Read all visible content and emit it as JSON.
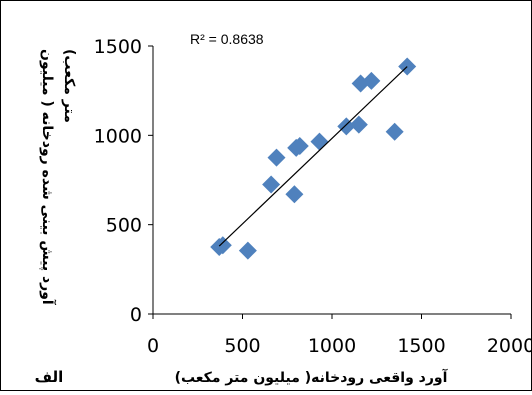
{
  "chart_data": {
    "type": "scatter",
    "xlabel": "آورد واقعی رودخانه( میلیون متر مکعب)",
    "ylabel": "آورد پیش بینی شده رودخانه ( میلیون متر مکعب)",
    "ylabel_lines": [
      "آورد پیش بینی شده رودخانه ( میلیون",
      "متر مکعب)"
    ],
    "xlim": [
      0,
      2000
    ],
    "ylim": [
      0,
      1500
    ],
    "xticks": [
      "0",
      "500",
      "1000",
      "1500",
      "2000"
    ],
    "yticks": [
      "0",
      "500",
      "1000",
      "1500"
    ],
    "annotation": "R² = 0.8638",
    "panel_label": "الف",
    "grid": false,
    "marker_color": "#4f81bd",
    "trendline": {
      "x": [
        370,
        1420
      ],
      "y": [
        380,
        1385
      ]
    },
    "points": [
      {
        "x": 370,
        "y": 375
      },
      {
        "x": 390,
        "y": 385
      },
      {
        "x": 530,
        "y": 355
      },
      {
        "x": 660,
        "y": 725
      },
      {
        "x": 690,
        "y": 875
      },
      {
        "x": 790,
        "y": 670
      },
      {
        "x": 800,
        "y": 930
      },
      {
        "x": 820,
        "y": 940
      },
      {
        "x": 930,
        "y": 965
      },
      {
        "x": 1080,
        "y": 1050
      },
      {
        "x": 1150,
        "y": 1060
      },
      {
        "x": 1160,
        "y": 1290
      },
      {
        "x": 1220,
        "y": 1305
      },
      {
        "x": 1350,
        "y": 1020
      },
      {
        "x": 1420,
        "y": 1385
      }
    ]
  }
}
